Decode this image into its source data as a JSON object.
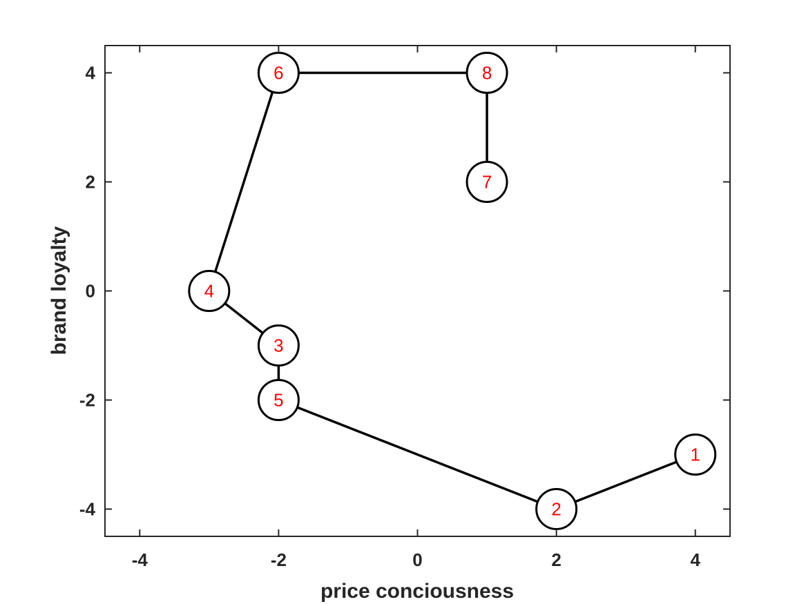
{
  "chart_data": {
    "type": "line",
    "xlabel": "price conciousness",
    "ylabel": "brand loyalty",
    "xlim": [
      -4.5,
      4.5
    ],
    "ylim": [
      -4.5,
      4.5
    ],
    "x_ticks": [
      -4,
      -2,
      0,
      2,
      4
    ],
    "y_ticks": [
      -4,
      -2,
      0,
      2,
      4
    ],
    "x_tick_labels": [
      "-4",
      "-2",
      "0",
      "2",
      "4"
    ],
    "y_tick_labels": [
      "-4",
      "-2",
      "0",
      "2",
      "4"
    ],
    "grid": false,
    "nodes": [
      {
        "label": "1",
        "x": 4,
        "y": -3
      },
      {
        "label": "2",
        "x": 2,
        "y": -4
      },
      {
        "label": "3",
        "x": -2,
        "y": -1
      },
      {
        "label": "4",
        "x": -3,
        "y": 0
      },
      {
        "label": "5",
        "x": -2,
        "y": -2
      },
      {
        "label": "6",
        "x": -2,
        "y": 4
      },
      {
        "label": "7",
        "x": 1,
        "y": 2
      },
      {
        "label": "8",
        "x": 1,
        "y": 4
      }
    ],
    "edges": [
      [
        "1",
        "2"
      ],
      [
        "2",
        "5"
      ],
      [
        "5",
        "3"
      ],
      [
        "3",
        "4"
      ],
      [
        "4",
        "6"
      ],
      [
        "6",
        "8"
      ],
      [
        "8",
        "7"
      ]
    ],
    "colors": {
      "line": "#000000",
      "node_fill": "#ffffff",
      "node_label": "#ff0000",
      "axis": "#262626"
    }
  }
}
